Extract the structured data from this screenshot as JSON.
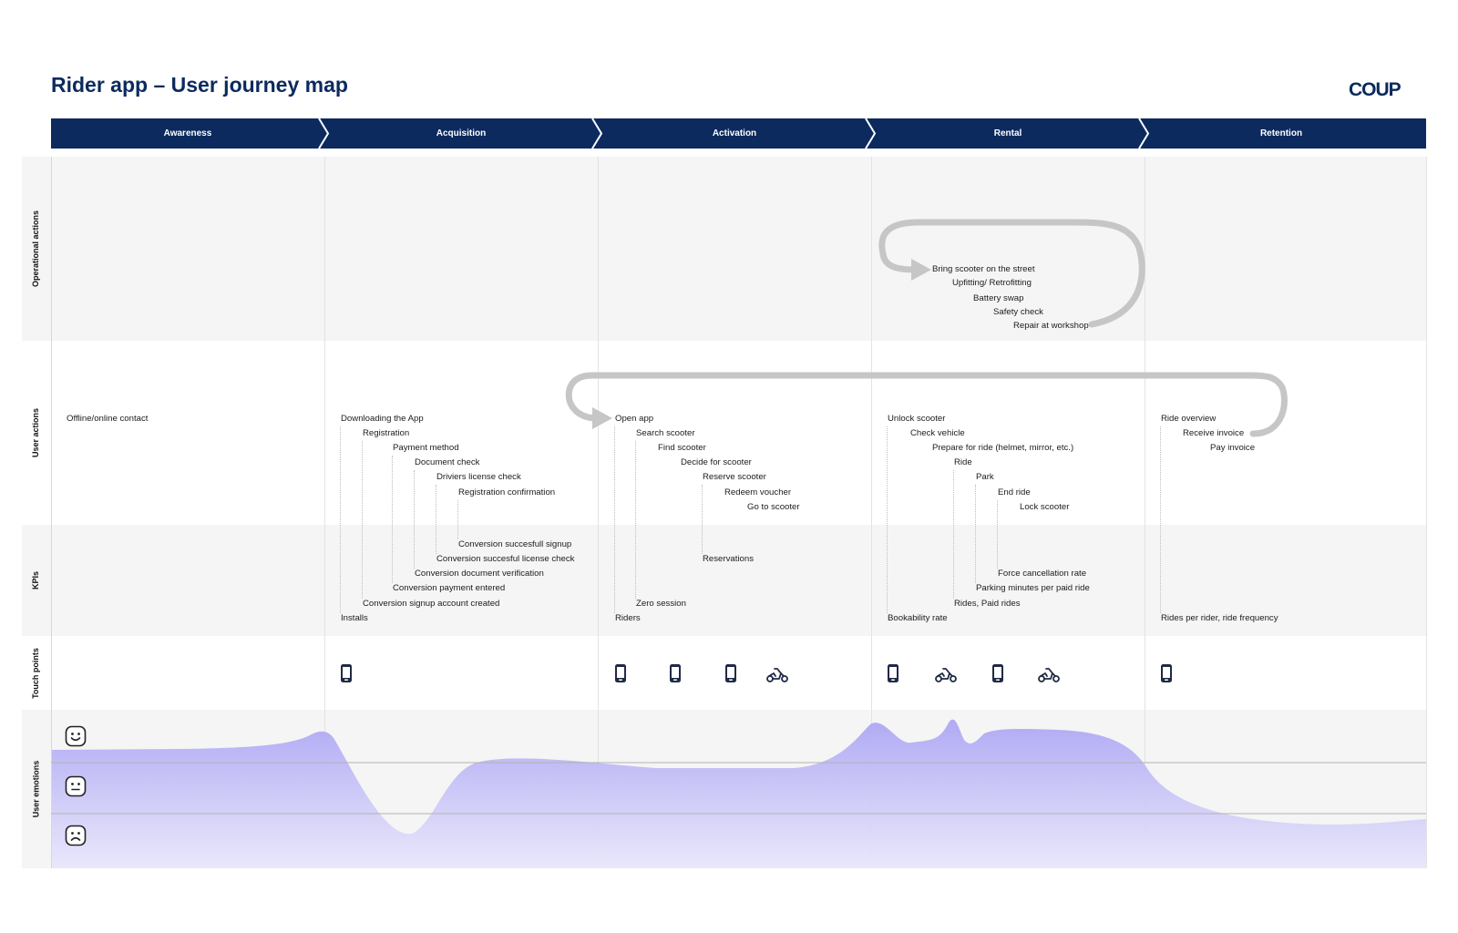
{
  "header": {
    "title": "Rider app – User journey map",
    "logo_text": "COUP"
  },
  "stages": [
    "Awareness",
    "Acquisition",
    "Activation",
    "Rental",
    "Retention"
  ],
  "rows": {
    "operational": "Operational actions",
    "user_actions": "User actions",
    "kpis": "KPIs",
    "touch_points": "Touch points",
    "emotions": "User emotions"
  },
  "operational_actions": [
    "Bring scooter on the street",
    "Upfitting/ Retrofitting",
    "Battery swap",
    "Safety check",
    "Repair at workshop"
  ],
  "user_actions": {
    "awareness": [
      "Offline/online contact"
    ],
    "acquisition": [
      "Downloading the App",
      "Registration",
      "Payment method",
      "Document check",
      "Driviers license check",
      "Registration confirmation"
    ],
    "activation": [
      "Open app",
      "Search scooter",
      "Find scooter",
      "Decide for scooter",
      "Reserve scooter",
      "Redeem voucher",
      "Go to scooter"
    ],
    "rental": [
      "Unlock scooter",
      "Check vehicle",
      "Prepare for ride (helmet, mirror, etc.)",
      "Ride",
      "Park",
      "End ride",
      "Lock scooter"
    ],
    "retention": [
      "Ride overview",
      "Receive invoice",
      "Pay invoice"
    ]
  },
  "kpis": {
    "acquisition": [
      "Conversion succesfull signup",
      "Conversion succesful license check",
      "Conversion document verification",
      "Conversion payment entered",
      "Conversion signup account created",
      "Installs"
    ],
    "activation": [
      "Reservations",
      "Zero session",
      "Riders"
    ],
    "rental": [
      "Force cancellation rate",
      "Parking minutes per paid ride",
      "Rides, Paid rides",
      "Bookability rate"
    ],
    "retention": [
      "Rides per rider, ride frequency"
    ]
  },
  "touch_points": {
    "acquisition": [
      "phone-icon"
    ],
    "activation": [
      "phone-icon",
      "phone-icon",
      "phone-icon",
      "scooter-icon"
    ],
    "rental": [
      "phone-icon",
      "scooter-icon",
      "phone-icon",
      "scooter-icon"
    ],
    "retention": [
      "phone-icon"
    ]
  },
  "emotion_levels": [
    "happy-face-icon",
    "neutral-face-icon",
    "sad-face-icon"
  ],
  "colors": {
    "navy": "#0c2a5e",
    "emotion_fill": "#a9a4f2",
    "arrow": "#c6c6c6",
    "band_gray": "#f5f5f5"
  }
}
